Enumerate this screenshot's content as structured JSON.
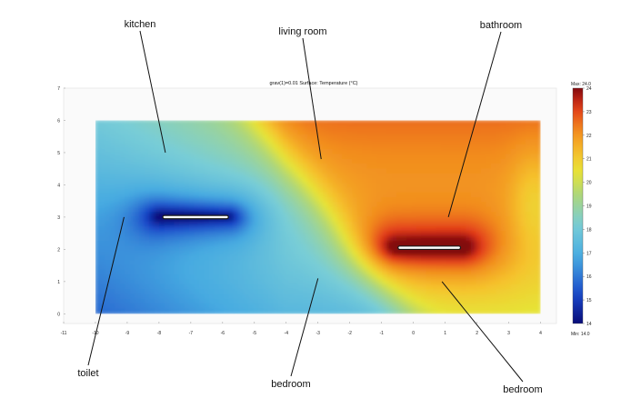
{
  "chart_data": {
    "type": "heatmap",
    "title": "grav(1)=0.01  Surface: Temperature (°C)",
    "xlabel": "",
    "ylabel": "",
    "xlim": [
      -11,
      4.5
    ],
    "ylim": [
      -0.3,
      7
    ],
    "x_ticks": [
      "-11",
      "-10",
      "-9",
      "-8",
      "-7",
      "-6",
      "-5",
      "-4",
      "-3",
      "-2",
      "-1",
      "0",
      "1",
      "2",
      "3",
      "4"
    ],
    "y_ticks": [
      "0",
      "1",
      "2",
      "3",
      "4",
      "5",
      "6",
      "7"
    ],
    "domain": {
      "x": [
        -10,
        4
      ],
      "y": [
        0,
        6
      ]
    },
    "colorbar": {
      "min": 14,
      "max": 24,
      "max_label": "Max: 24.0",
      "min_label": "Min: 14.0",
      "ticks": [
        "24",
        "23",
        "22",
        "21",
        "20",
        "19",
        "18",
        "17",
        "16",
        "15",
        "14"
      ]
    },
    "sources": [
      {
        "name": "cold plate",
        "x0": -7.9,
        "x1": -5.8,
        "y": 3.0,
        "temperature": 14
      },
      {
        "name": "hot plate",
        "x0": -0.5,
        "x1": 1.5,
        "y": 2.05,
        "temperature": 24
      }
    ],
    "annotations": [
      {
        "text": "kitchen",
        "point": [
          -7.8,
          5.0
        ]
      },
      {
        "text": "living room",
        "point": [
          -2.9,
          4.8
        ]
      },
      {
        "text": "bathroom",
        "point": [
          1.1,
          3.0
        ]
      },
      {
        "text": "toilet",
        "point": [
          -9.1,
          3.0
        ]
      },
      {
        "text": "bedroom",
        "point": [
          -3.0,
          1.1
        ]
      },
      {
        "text": "bedroom",
        "point": [
          0.9,
          1.0
        ]
      }
    ]
  }
}
